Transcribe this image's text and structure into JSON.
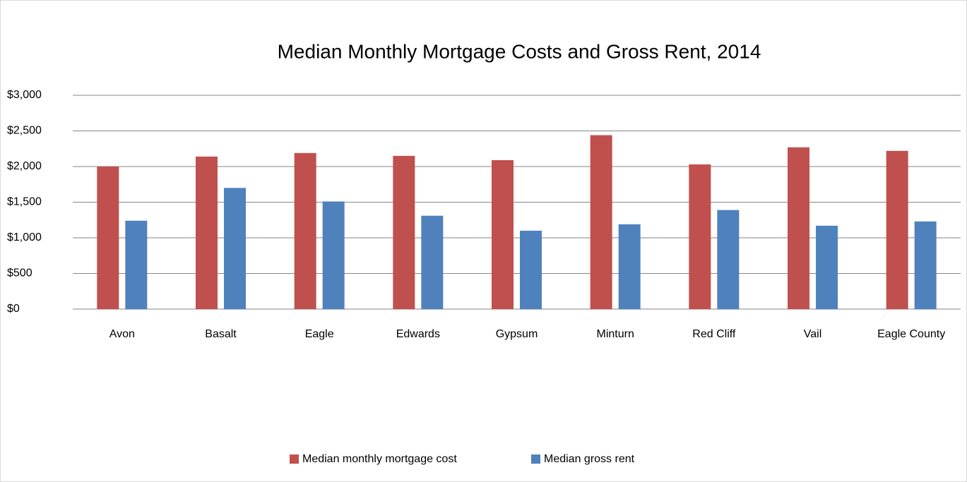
{
  "chart_data": {
    "type": "bar",
    "title": "Median Monthly Mortgage Costs and Gross Rent, 2014",
    "categories": [
      "Avon",
      "Basalt",
      "Eagle",
      "Edwards",
      "Gypsum",
      "Minturn",
      "Red Cliff",
      "Vail",
      "Eagle County"
    ],
    "series": [
      {
        "name": "Median monthly mortgage cost",
        "color": "#c0504d",
        "values": [
          2000,
          2140,
          2190,
          2150,
          2090,
          2440,
          2030,
          2270,
          2220
        ]
      },
      {
        "name": "Median gross rent",
        "color": "#4f81bd",
        "values": [
          1240,
          1700,
          1510,
          1310,
          1100,
          1190,
          1390,
          1170,
          1230
        ]
      }
    ],
    "ylim": [
      0,
      3000
    ],
    "yticks": [
      {
        "value": 0,
        "label": "$0"
      },
      {
        "value": 500,
        "label": "$500"
      },
      {
        "value": 1000,
        "label": "$1,000"
      },
      {
        "value": 1500,
        "label": "$1,500"
      },
      {
        "value": 2000,
        "label": "$2,000"
      },
      {
        "value": 2500,
        "label": "$2,500"
      },
      {
        "value": 3000,
        "label": "$3,000"
      }
    ],
    "grid": true,
    "legend": "bottom"
  }
}
